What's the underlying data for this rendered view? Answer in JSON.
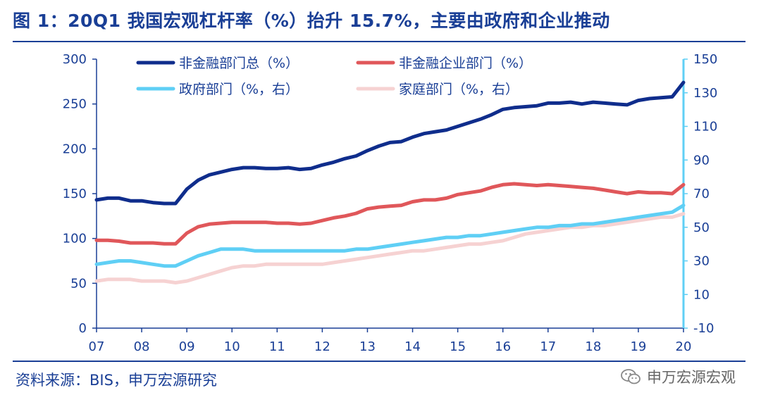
{
  "title": "图 1：20Q1 我国宏观杠杆率（%）抬升 15.7%，主要由政府和企业推动",
  "source": "资料来源：BIS，申万宏源研究",
  "watermark": "申万宏源宏观",
  "colors": {
    "title": "#1a3f96",
    "nonfin_total": "#0f2d8c",
    "nonfin_corp": "#e0575a",
    "government": "#5fcff5",
    "household": "#f6d2d2",
    "right_axis": "#5fcff5"
  },
  "chart_data": {
    "type": "line",
    "x": [
      "2007Q1",
      "2007Q2",
      "2007Q3",
      "2007Q4",
      "2008Q1",
      "2008Q2",
      "2008Q3",
      "2008Q4",
      "2009Q1",
      "2009Q2",
      "2009Q3",
      "2009Q4",
      "2010Q1",
      "2010Q2",
      "2010Q3",
      "2010Q4",
      "2011Q1",
      "2011Q2",
      "2011Q3",
      "2011Q4",
      "2012Q1",
      "2012Q2",
      "2012Q3",
      "2012Q4",
      "2013Q1",
      "2013Q2",
      "2013Q3",
      "2013Q4",
      "2014Q1",
      "2014Q2",
      "2014Q3",
      "2014Q4",
      "2015Q1",
      "2015Q2",
      "2015Q3",
      "2015Q4",
      "2016Q1",
      "2016Q2",
      "2016Q3",
      "2016Q4",
      "2017Q1",
      "2017Q2",
      "2017Q3",
      "2017Q4",
      "2018Q1",
      "2018Q2",
      "2018Q3",
      "2018Q4",
      "2019Q1",
      "2019Q2",
      "2019Q3",
      "2019Q4",
      "2020Q1"
    ],
    "x_tick_labels": [
      "07",
      "08",
      "09",
      "10",
      "11",
      "12",
      "13",
      "14",
      "15",
      "16",
      "17",
      "18",
      "19",
      "20"
    ],
    "left_axis": {
      "ylim": [
        0,
        300
      ],
      "ticks": [
        0,
        50,
        100,
        150,
        200,
        250,
        300
      ]
    },
    "right_axis": {
      "ylim": [
        -10,
        150
      ],
      "ticks": [
        -10,
        10,
        30,
        50,
        70,
        90,
        110,
        130,
        150
      ]
    },
    "legend_position": "top",
    "series": [
      {
        "name": "非金融部门总（%）",
        "axis": "left",
        "color": "#0f2d8c",
        "values": [
          143,
          145,
          145,
          142,
          142,
          140,
          139,
          139,
          155,
          165,
          171,
          174,
          177,
          179,
          179,
          178,
          178,
          179,
          177,
          178,
          182,
          185,
          189,
          192,
          198,
          203,
          207,
          208,
          213,
          217,
          219,
          221,
          225,
          229,
          233,
          238,
          244,
          246,
          247,
          248,
          251,
          251,
          252,
          250,
          252,
          251,
          250,
          249,
          254,
          256,
          257,
          258,
          274
        ]
      },
      {
        "name": "非金融企业部门（%）",
        "axis": "left",
        "color": "#e0575a",
        "values": [
          98,
          98,
          97,
          95,
          95,
          95,
          94,
          94,
          106,
          113,
          116,
          117,
          118,
          118,
          118,
          118,
          117,
          117,
          116,
          117,
          120,
          123,
          125,
          128,
          133,
          135,
          136,
          137,
          141,
          143,
          143,
          145,
          149,
          151,
          153,
          157,
          160,
          161,
          160,
          159,
          160,
          159,
          158,
          157,
          156,
          154,
          152,
          150,
          152,
          151,
          151,
          150,
          160
        ]
      },
      {
        "name": "政府部门（%，右）",
        "axis": "right",
        "color": "#5fcff5",
        "values": [
          28,
          29,
          30,
          30,
          29,
          28,
          27,
          27,
          30,
          33,
          35,
          37,
          37,
          37,
          36,
          36,
          36,
          36,
          36,
          36,
          36,
          36,
          36,
          37,
          37,
          38,
          39,
          40,
          41,
          42,
          43,
          44,
          44,
          45,
          45,
          46,
          47,
          48,
          49,
          50,
          50,
          51,
          51,
          52,
          52,
          53,
          54,
          55,
          56,
          57,
          58,
          59,
          63
        ]
      },
      {
        "name": "家庭部门（%，右）",
        "axis": "right",
        "color": "#f6d2d2",
        "values": [
          18,
          19,
          19,
          19,
          18,
          18,
          18,
          17,
          18,
          20,
          22,
          24,
          26,
          27,
          27,
          28,
          28,
          28,
          28,
          28,
          28,
          29,
          30,
          31,
          32,
          33,
          34,
          35,
          36,
          36,
          37,
          38,
          39,
          40,
          40,
          41,
          42,
          44,
          46,
          47,
          48,
          49,
          50,
          50,
          51,
          51,
          52,
          53,
          54,
          55,
          56,
          56,
          58
        ]
      }
    ]
  }
}
